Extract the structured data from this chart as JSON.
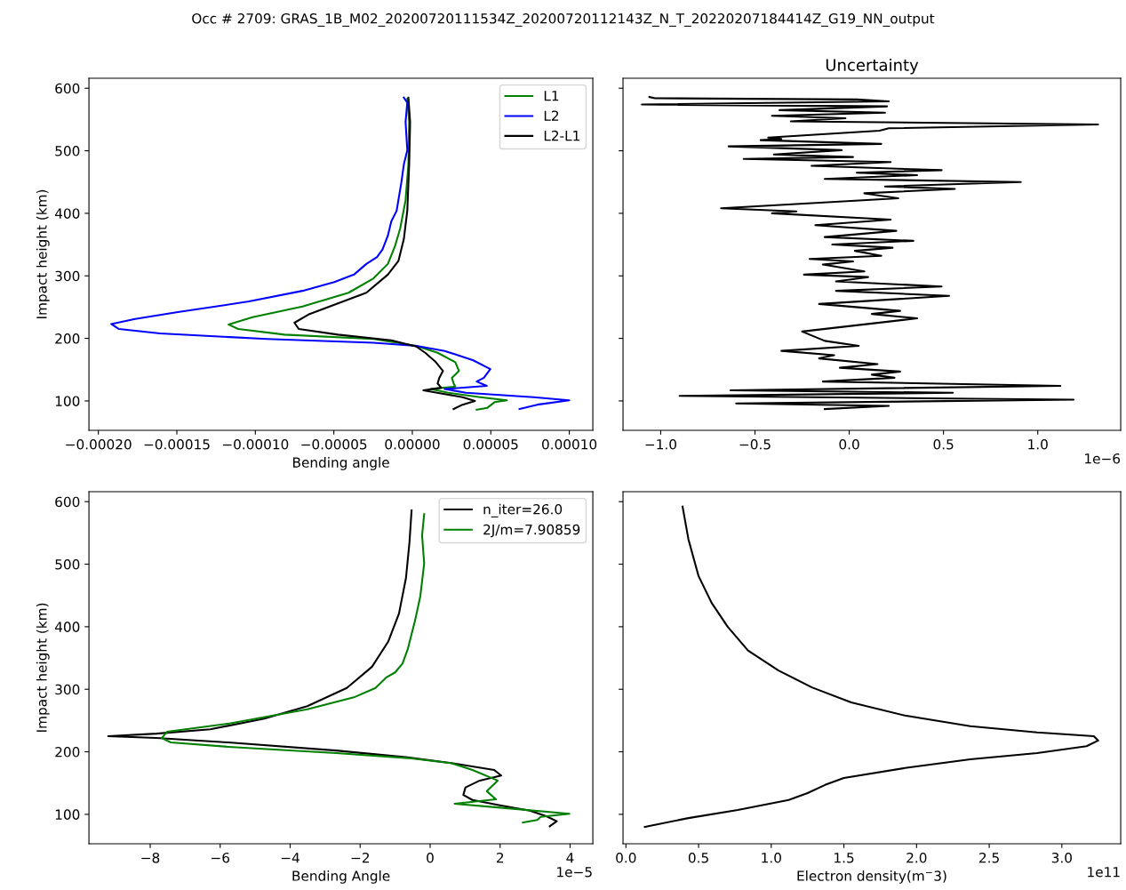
{
  "chart_data": [
    {
      "type": "line",
      "title": "Occ # 2709: GRAS_1B_M02_20200720111534Z_20200720112143Z_N_T_20220207184414Z_G19_NN_output",
      "xlabel": "Bending angle",
      "ylabel": "Impact height (km)",
      "legend": "top right",
      "xlim": [
        -0.000206,
        0.000115
      ],
      "xticks": [
        {
          "value": -0.0002,
          "label": "−0.00020"
        },
        {
          "value": -0.00015,
          "label": "−0.00015"
        },
        {
          "value": -0.0001,
          "label": "−0.00010"
        },
        {
          "value": -5e-05,
          "label": "−0.00005"
        },
        {
          "value": 0,
          "label": "0.00000"
        },
        {
          "value": 5e-05,
          "label": "0.00005"
        },
        {
          "value": 0.0001,
          "label": "0.00010"
        }
      ],
      "ylim": [
        53,
        616
      ],
      "yticks": [
        100,
        200,
        300,
        400,
        500,
        600
      ],
      "series": [
        {
          "name": "L1",
          "color": "#008000",
          "x": [
            -3.2e-06,
            -2e-06,
            -2.5e-06,
            -4.3e-06,
            -7.7e-06,
            -1.11e-05,
            -1.56e-05,
            -2.47e-05,
            -4.06e-05,
            -7e-05,
            -0.0001018,
            -0.000117,
            -0.0001109,
            -8.14e-05,
            -2.47e-05,
            2.5e-06,
            1.61e-05,
            2.74e-05,
            2.97e-05,
            2.52e-05,
            2.63e-05,
            2.74e-05,
            1.16e-05,
            2.29e-05,
            4.33e-05,
            6.03e-05,
            5.24e-05,
            4.78e-05,
            4.1e-05
          ],
          "values": [
            583,
            546,
            478,
            421,
            376,
            347,
            319,
            296,
            273,
            251,
            234,
            222,
            215,
            206,
            199,
            188,
            177,
            162,
            148,
            137,
            128,
            123,
            119,
            113,
            106,
            101,
            98,
            89,
            86
          ]
        },
        {
          "name": "L2",
          "color": "#0000ff",
          "x": [
            -5.4e-06,
            -3.2e-06,
            -4.3e-06,
            -3.2e-06,
            -5.4e-06,
            -7e-06,
            -1e-05,
            -1.34e-05,
            -1.56e-05,
            -1.9e-05,
            -2.25e-05,
            -2.93e-05,
            -3.72e-05,
            -4.97e-05,
            -7e-05,
            -0.0001041,
            -0.0001494,
            -0.0001766,
            -0.0001918,
            -0.0001869,
            -0.0001608,
            -9.27e-05,
            -2.47e-05,
            2.5e-06,
            2.06e-05,
            3.88e-05,
            4.97e-05,
            4.56e-05,
            4.1e-05,
            4.74e-05,
            2.06e-05,
            3.42e-05,
            7.73e-05,
            0.0001,
            7.96e-05,
            6.83e-05
          ],
          "values": [
            585,
            577,
            546,
            501,
            478,
            449,
            404,
            387,
            364,
            342,
            330,
            319,
            302,
            290,
            276,
            259,
            242,
            231,
            223,
            215,
            208,
            199,
            193,
            188,
            180,
            165,
            151,
            137,
            131,
            124,
            119,
            113,
            106,
            101,
            94,
            87
          ]
        },
        {
          "name": "L2-L1",
          "color": "#000000",
          "x": [
            -2.5e-06,
            -1.4e-06,
            -2e-06,
            -3.2e-06,
            -5.4e-06,
            -8.8e-06,
            -1.56e-05,
            -2.93e-05,
            -4.74e-05,
            -6.55e-05,
            -7.51e-05,
            -7.23e-05,
            -4.74e-05,
            -1.34e-05,
            2.5e-06,
            8.2e-06,
            1.5e-05,
            1.95e-05,
            1.72e-05,
            1.61e-05,
            1.84e-05,
            7e-06,
            2.06e-05,
            3.2e-05,
            3.99e-05,
            3.2e-05,
            2.63e-05
          ],
          "values": [
            585,
            546,
            478,
            404,
            359,
            324,
            302,
            273,
            256,
            239,
            225,
            215,
            206,
            197,
            187,
            177,
            162,
            148,
            137,
            128,
            121,
            117,
            111,
            106,
            100,
            94,
            87
          ]
        }
      ]
    },
    {
      "type": "line",
      "title": "Uncertainty",
      "annotations": [
        "1e−6"
      ],
      "tick_labels": "x",
      "xlim": [
        -1.2,
        1.44
      ],
      "xticks": [
        {
          "value": -1.0,
          "label": "−1.0"
        },
        {
          "value": -0.5,
          "label": "−0.5"
        },
        {
          "value": 0.0,
          "label": "0.0"
        },
        {
          "value": 0.5,
          "label": "0.5"
        },
        {
          "value": 1.0,
          "label": "1.0"
        }
      ],
      "ylim": [
        53,
        616
      ],
      "yticks": [
        100,
        200,
        300,
        400,
        500,
        600
      ],
      "series": [
        {
          "color": "#000000",
          "x": [
            -1.06,
            -1.03,
            0.04,
            0.21,
            -1.1,
            0.2,
            -0.37,
            0.19,
            -0.41,
            -0.02,
            -0.31,
            1.32,
            0.21,
            0.16,
            -0.43,
            -0.36,
            -0.47,
            0.17,
            -0.64,
            -0.04,
            -0.4,
            0.02,
            -0.56,
            0.22,
            -0.2,
            0.49,
            0.04,
            0.36,
            -0.13,
            0.91,
            0.19,
            0.56,
            0.08,
            0.26,
            -0.68,
            -0.28,
            -0.41,
            0.22,
            -0.18,
            0.25,
            -0.13,
            0.34,
            -0.09,
            0.23,
            0.03,
            0.17,
            -0.21,
            0.02,
            -0.14,
            0.08,
            -0.24,
            0.1,
            -0.07,
            0.49,
            -0.07,
            0.53,
            -0.16,
            0.27,
            0.12,
            0.36,
            -0.25,
            -0.13,
            0.05,
            -0.36,
            -0.08,
            -0.16,
            0.15,
            -0.05,
            0.27,
            0.12,
            0.24,
            -0.14,
            1.12,
            -0.63,
            0.55,
            -0.9,
            1.19,
            -0.6,
            0.21,
            -0.13
          ],
          "values": [
            586,
            584,
            582,
            579,
            574,
            571,
            565,
            561,
            556,
            552,
            547,
            542,
            536,
            532,
            521,
            519,
            517,
            511,
            507,
            501,
            494,
            490,
            487,
            482,
            476,
            469,
            465,
            461,
            455,
            450,
            443,
            439,
            432,
            424,
            408,
            403,
            400,
            390,
            381,
            372,
            362,
            356,
            350,
            345,
            340,
            332,
            327,
            323,
            318,
            307,
            302,
            298,
            291,
            283,
            276,
            268,
            255,
            244,
            239,
            232,
            211,
            196,
            188,
            180,
            173,
            168,
            159,
            153,
            147,
            142,
            137,
            131,
            124,
            117,
            113,
            108,
            102,
            96,
            92,
            87
          ]
        }
      ]
    },
    {
      "type": "line",
      "xlabel": "Bending Angle",
      "ylabel": "Impact height (km)",
      "legend": "top right",
      "annotations": [
        "1e−5"
      ],
      "xlim": [
        -9.75,
        4.65
      ],
      "xticks": [
        {
          "value": -8,
          "label": "−8"
        },
        {
          "value": -6,
          "label": "−6"
        },
        {
          "value": -4,
          "label": "−4"
        },
        {
          "value": -2,
          "label": "−2"
        },
        0,
        2,
        4
      ],
      "ylim": [
        53,
        616
      ],
      "yticks": [
        100,
        200,
        300,
        400,
        500,
        600
      ],
      "series": [
        {
          "name": "n_iter=26.0",
          "color": "#000000",
          "x": [
            -0.53,
            -0.59,
            -0.69,
            -0.89,
            -1.2,
            -1.66,
            -2.38,
            -3.51,
            -4.74,
            -6.28,
            -7.82,
            -9.2,
            -7.82,
            -5.77,
            -2.69,
            -0.64,
            0.6,
            1.83,
            2.03,
            1.42,
            1.01,
            0.95,
            1.21,
            2.03,
            2.85,
            3.32,
            3.62,
            3.42
          ],
          "values": [
            586,
            535,
            478,
            421,
            376,
            336,
            302,
            273,
            253,
            236,
            229,
            225,
            222,
            215,
            202,
            191,
            182,
            171,
            162,
            154,
            143,
            131,
            123,
            114,
            106,
            97,
            89,
            81
          ]
        },
        {
          "name": "2J/m=7.90859",
          "color": "#008000",
          "x": [
            -0.17,
            -0.23,
            -0.17,
            -0.28,
            -0.43,
            -0.64,
            -0.79,
            -1.0,
            -1.25,
            -1.56,
            -2.18,
            -3.51,
            -5.77,
            -7.52,
            -7.67,
            -7.41,
            -5.77,
            -2.69,
            -0.64,
            0.6,
            1.21,
            1.93,
            1.62,
            1.88,
            0.7,
            1.93,
            3.98,
            3.16,
            3.06,
            2.65
          ],
          "values": [
            580,
            546,
            501,
            449,
            410,
            364,
            341,
            327,
            319,
            302,
            287,
            268,
            245,
            232,
            222,
            215,
            208,
            198,
            190,
            182,
            171,
            154,
            137,
            124,
            117,
            111,
            101,
            96,
            91,
            87
          ]
        }
      ]
    },
    {
      "type": "line",
      "xlabel": "Electron density(m$^{−}$3)",
      "annotations": [
        "1e11"
      ],
      "tick_labels": "x",
      "xlim": [
        -0.02,
        3.405
      ],
      "xticks": [
        {
          "value": 0,
          "label": "0.0"
        },
        0.5,
        {
          "value": 1,
          "label": "1.0"
        },
        1.5,
        {
          "value": 2,
          "label": "2.0"
        },
        2.5,
        {
          "value": 3,
          "label": "3.0"
        }
      ],
      "ylim": [
        53,
        616
      ],
      "yticks": [
        100,
        200,
        300,
        400,
        500,
        600
      ],
      "series": [
        {
          "color": "#000000",
          "x": [
            0.39,
            0.43,
            0.5,
            0.59,
            0.7,
            0.84,
            1.05,
            1.28,
            1.55,
            1.92,
            2.37,
            2.83,
            3.22,
            3.25,
            3.17,
            2.83,
            2.37,
            1.92,
            1.5,
            1.37,
            1.25,
            1.12,
            0.77,
            0.43,
            0.13
          ],
          "values": [
            592,
            540,
            481,
            438,
            400,
            362,
            330,
            303,
            279,
            258,
            241,
            231,
            225,
            218,
            209,
            198,
            188,
            174,
            158,
            147,
            134,
            123,
            107,
            94,
            80
          ]
        }
      ]
    }
  ]
}
